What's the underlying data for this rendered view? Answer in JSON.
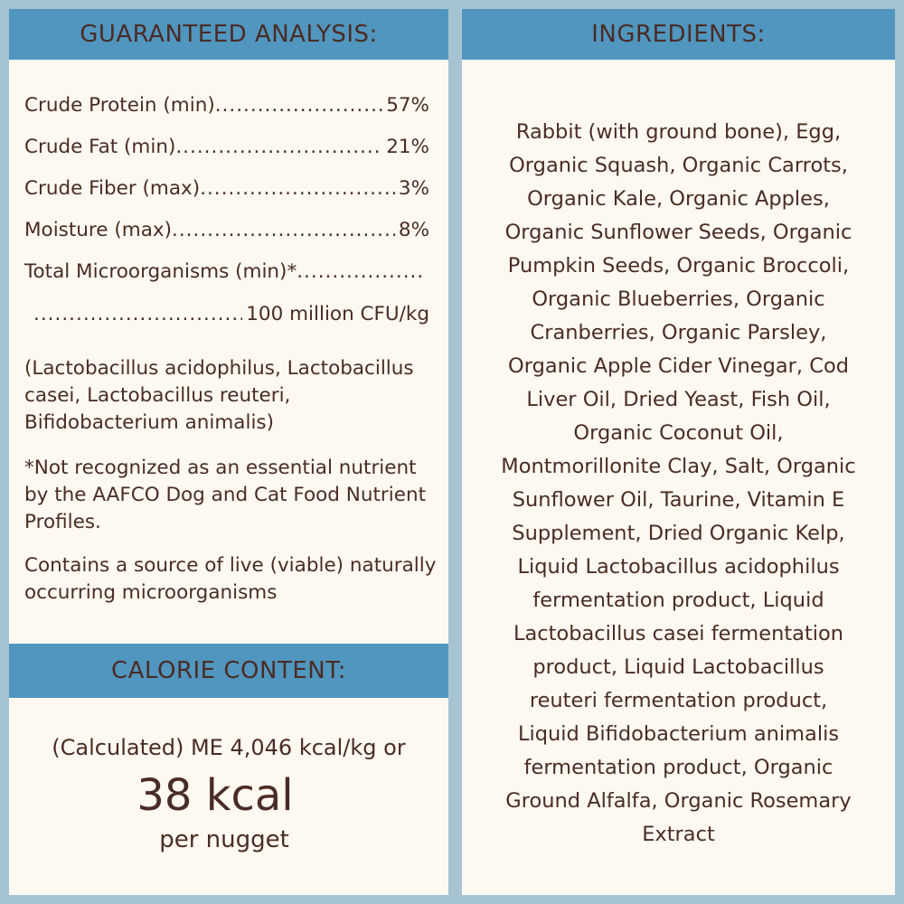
{
  "colors": {
    "background": "#a6c3d2",
    "header": "#5096bf",
    "panel": "#fdf9f0",
    "text": "#4a2c26"
  },
  "analysis": {
    "title": "GUARANTEED ANALYSIS:",
    "rows": [
      {
        "label": "Crude Protein (min)",
        "value": "57%"
      },
      {
        "label": "Crude Fat (min)",
        "value": "21%"
      },
      {
        "label": "Crude Fiber (max)",
        "value": "3%"
      },
      {
        "label": "Moisture (max)",
        "value": "8%"
      },
      {
        "label": "Total Microorganisms (min)*",
        "value": ""
      },
      {
        "label": "",
        "value": "100 million CFU/kg"
      }
    ],
    "strains": "(Lactobacillus acidophilus, Lactobacillus casei, Lactobacillus reuteri, Bifidobacterium animalis)",
    "footnote": "*Not recognized as an essential nutrient by the AAFCO Dog and Cat Food Nutrient Profiles.",
    "live_note": "Contains a source of live (viable) naturally occurring microorganisms"
  },
  "calorie": {
    "title": "CALORIE CONTENT:",
    "line1": "(Calculated) ME 4,046 kcal/kg or",
    "big": "38 kcal",
    "line3": "per nugget"
  },
  "ingredients": {
    "title": "INGREDIENTS:",
    "lines": [
      "Rabbit (with ground bone), Egg,",
      "Organic Squash, Organic Carrots,",
      "Organic Kale, Organic Apples,",
      "Organic Sunflower Seeds, Organic",
      "Pumpkin Seeds, Organic Broccoli,",
      "Organic Blueberries, Organic",
      "Cranberries, Organic Parsley,",
      "Organic Apple Cider Vinegar, Cod",
      "Liver Oil, Dried Yeast, Fish Oil,",
      "Organic Coconut Oil,",
      "Montmorillonite Clay, Salt, Organic",
      "Sunflower Oil, Taurine, Vitamin E",
      "Supplement, Dried Organic Kelp,",
      "Liquid Lactobacillus acidophilus",
      "fermentation product, Liquid",
      "Lactobacillus casei fermentation",
      "product, Liquid Lactobacillus",
      "reuteri fermentation product,",
      "Liquid Bifidobacterium animalis",
      "fermentation product, Organic",
      "Ground Alfalfa, Organic Rosemary",
      "Extract"
    ]
  }
}
